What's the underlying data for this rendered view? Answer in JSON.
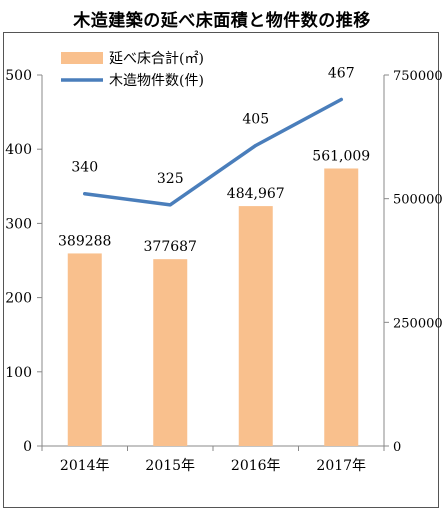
{
  "title": "木造建築の延べ床面積と物件数の推移",
  "chart_data": {
    "type": "bar",
    "categories": [
      "2014年",
      "2015年",
      "2016年",
      "2017年"
    ],
    "series": [
      {
        "name": "延べ床合計(㎡)",
        "type": "bar",
        "axis": "right",
        "values": [
          389288,
          377687,
          484967,
          561009
        ],
        "labels": [
          "389288",
          "377687",
          "484,967",
          "561,009"
        ],
        "color": "#F9C08D"
      },
      {
        "name": "木造物件数(件)",
        "type": "line",
        "axis": "left",
        "values": [
          340,
          325,
          405,
          467
        ],
        "labels": [
          "340",
          "325",
          "405",
          "467"
        ],
        "color": "#4A7EBB"
      }
    ],
    "y_left": {
      "min": 0,
      "max": 500,
      "ticks": [
        "0",
        "100",
        "200",
        "300",
        "400",
        "500"
      ]
    },
    "y_right": {
      "min": 0,
      "max": 750000,
      "ticks": [
        "0",
        "250000",
        "500000",
        "750000"
      ]
    },
    "legend_position": "top-left",
    "grid": false
  }
}
